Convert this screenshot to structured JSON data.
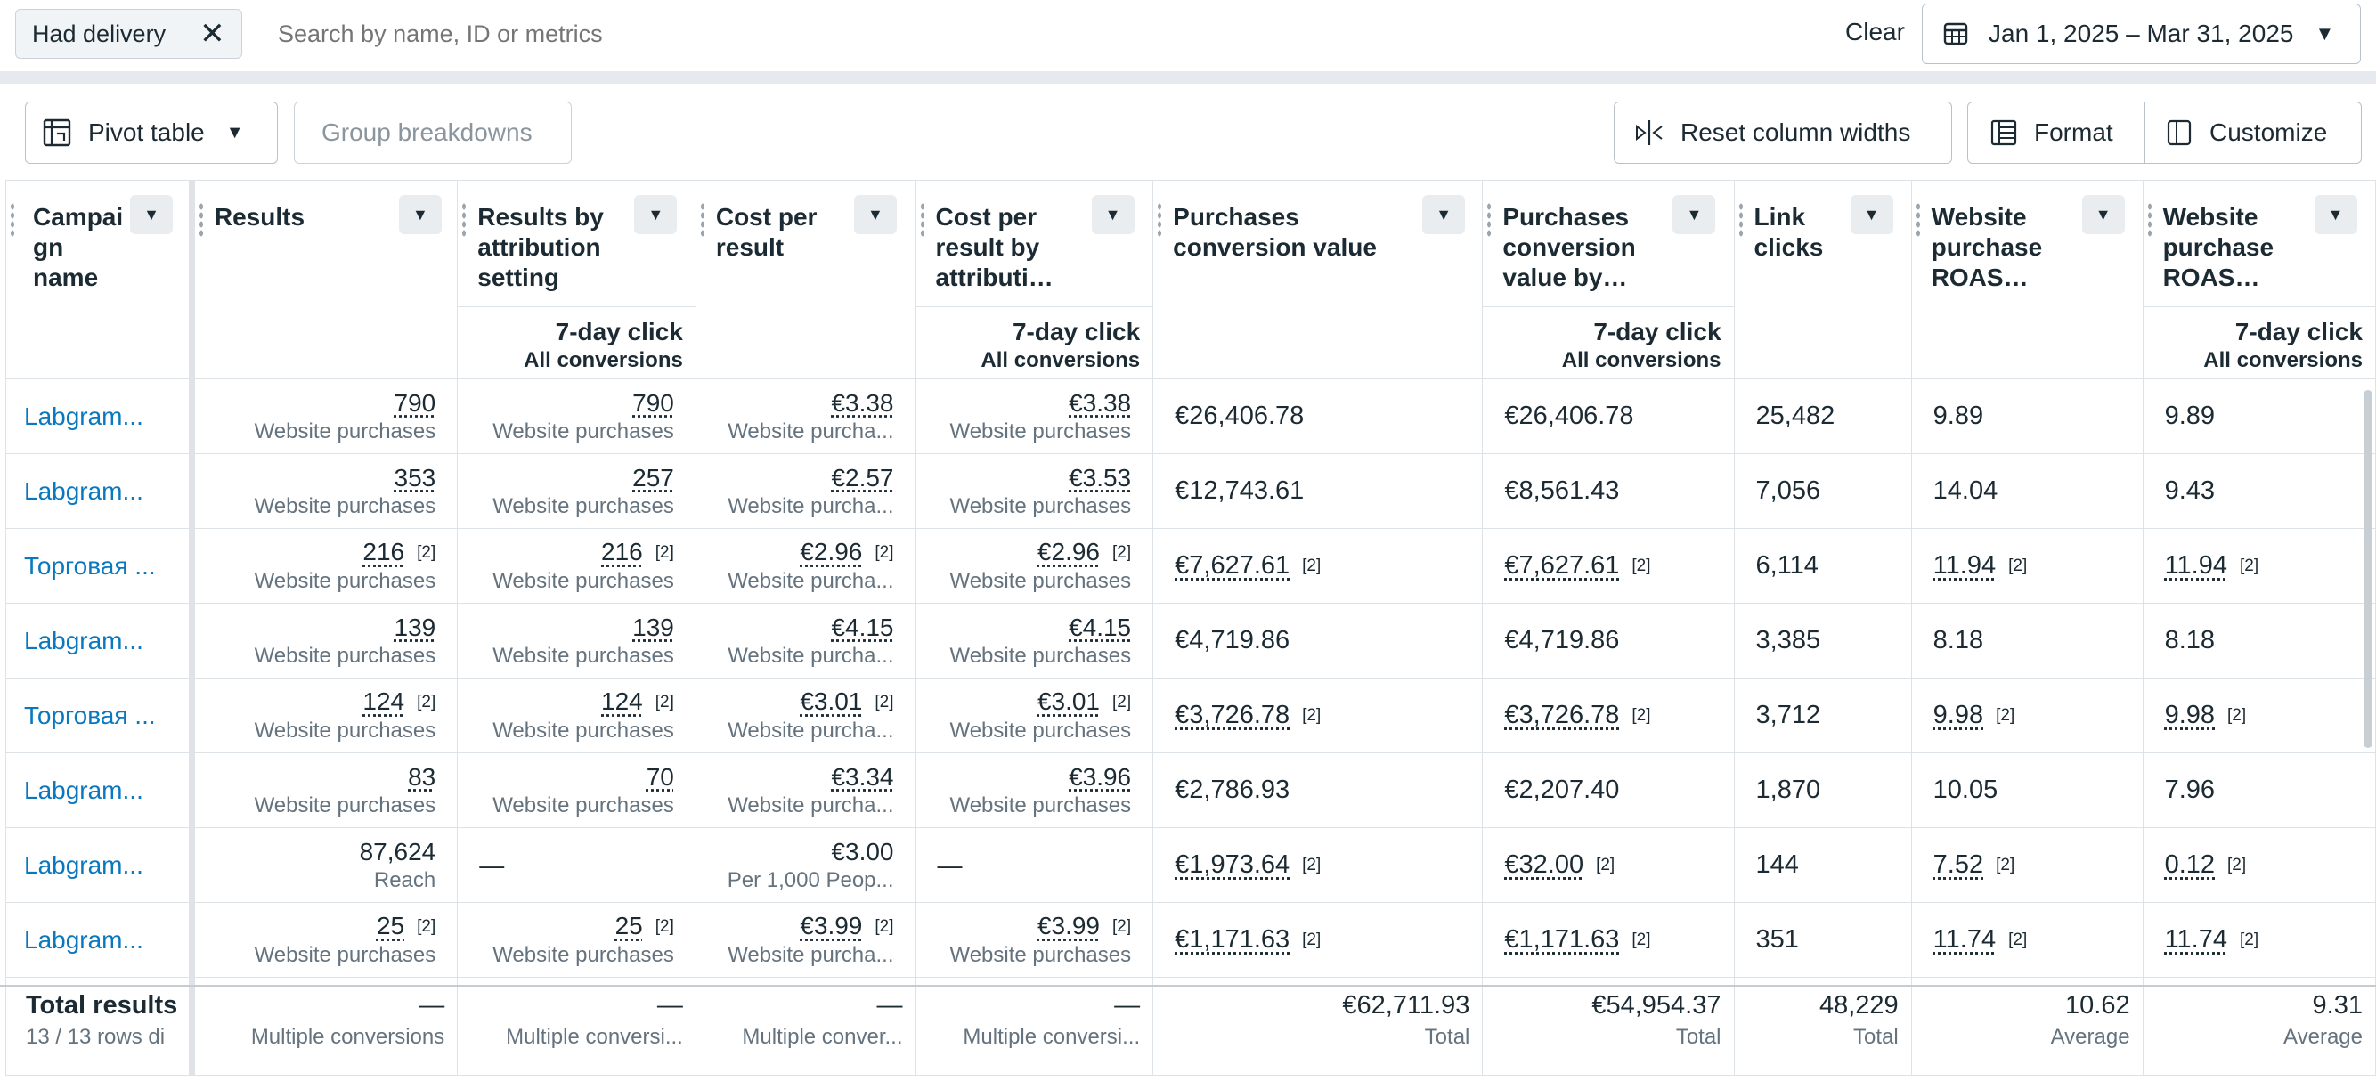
{
  "filter": {
    "chip_label": "Had delivery",
    "search_placeholder": "Search by name, ID or metrics",
    "clear_label": "Clear",
    "date_range": "Jan 1, 2025 – Mar 31, 2025"
  },
  "toolbar": {
    "pivot_label": "Pivot table",
    "group_label": "Group breakdowns",
    "reset_label": "Reset column widths",
    "format_label": "Format",
    "customize_label": "Customize"
  },
  "columns": [
    {
      "name": "Campaign name",
      "label": "Campai gn name",
      "sub1": "",
      "sub2": ""
    },
    {
      "name": "Results",
      "label": "Results",
      "sub1": "",
      "sub2": ""
    },
    {
      "name": "Results by attribution setting",
      "label": "Results by attribution setting",
      "sub1": "7-day click",
      "sub2": "All conversions"
    },
    {
      "name": "Cost per result",
      "label": "Cost per result",
      "sub1": "",
      "sub2": ""
    },
    {
      "name": "Cost per result by attribution",
      "label": "Cost per result by attributi…",
      "sub1": "7-day click",
      "sub2": "All conversions"
    },
    {
      "name": "Purchases conversion value",
      "label": "Purchases conversion value",
      "sub1": "",
      "sub2": ""
    },
    {
      "name": "Purchases conversion value by",
      "label": "Purchases conversion value by…",
      "sub1": "7-day click",
      "sub2": "All conversions"
    },
    {
      "name": "Link clicks",
      "label": "Link clicks",
      "sub1": "",
      "sub2": ""
    },
    {
      "name": "Website purchase ROAS",
      "label": "Website purchase ROAS…",
      "sub1": "",
      "sub2": ""
    },
    {
      "name": "Website purchase ROAS by",
      "label": "Website purchase ROAS…",
      "sub1": "7-day click",
      "sub2": "All conversions"
    }
  ],
  "rows": [
    {
      "name": "Labgram...",
      "results": "790",
      "results_sub": "Website purchases",
      "results_ref": "",
      "attr": "790",
      "attr_sub": "Website purchases",
      "attr_ref": "",
      "cpr": "€3.38",
      "cpr_sub": "Website purcha...",
      "cpr_ref": "",
      "cpra": "€3.38",
      "cpra_sub": "Website purchases",
      "cpra_ref": "",
      "pcv": "€26,406.78",
      "pcv_ref": "",
      "pcva": "€26,406.78",
      "pcva_ref": "",
      "clicks": "25,482",
      "roas": "9.89",
      "roas_ref": "",
      "roasa": "9.89",
      "roasa_ref": ""
    },
    {
      "name": "Labgram...",
      "results": "353",
      "results_sub": "Website purchases",
      "results_ref": "",
      "attr": "257",
      "attr_sub": "Website purchases",
      "attr_ref": "",
      "cpr": "€2.57",
      "cpr_sub": "Website purcha...",
      "cpr_ref": "",
      "cpra": "€3.53",
      "cpra_sub": "Website purchases",
      "cpra_ref": "",
      "pcv": "€12,743.61",
      "pcv_ref": "",
      "pcva": "€8,561.43",
      "pcva_ref": "",
      "clicks": "7,056",
      "roas": "14.04",
      "roas_ref": "",
      "roasa": "9.43",
      "roasa_ref": ""
    },
    {
      "name": "Торговая ...",
      "results": "216",
      "results_sub": "Website purchases",
      "results_ref": "[2]",
      "attr": "216",
      "attr_sub": "Website purchases",
      "attr_ref": "[2]",
      "cpr": "€2.96",
      "cpr_sub": "Website purcha...",
      "cpr_ref": "[2]",
      "cpra": "€2.96",
      "cpra_sub": "Website purchases",
      "cpra_ref": "[2]",
      "pcv": "€7,627.61",
      "pcv_ref": "[2]",
      "pcva": "€7,627.61",
      "pcva_ref": "[2]",
      "clicks": "6,114",
      "roas": "11.94",
      "roas_ref": "[2]",
      "roasa": "11.94",
      "roasa_ref": "[2]"
    },
    {
      "name": "Labgram...",
      "results": "139",
      "results_sub": "Website purchases",
      "results_ref": "",
      "attr": "139",
      "attr_sub": "Website purchases",
      "attr_ref": "",
      "cpr": "€4.15",
      "cpr_sub": "Website purcha...",
      "cpr_ref": "",
      "cpra": "€4.15",
      "cpra_sub": "Website purchases",
      "cpra_ref": "",
      "pcv": "€4,719.86",
      "pcv_ref": "",
      "pcva": "€4,719.86",
      "pcva_ref": "",
      "clicks": "3,385",
      "roas": "8.18",
      "roas_ref": "",
      "roasa": "8.18",
      "roasa_ref": ""
    },
    {
      "name": "Торговая ...",
      "results": "124",
      "results_sub": "Website purchases",
      "results_ref": "[2]",
      "attr": "124",
      "attr_sub": "Website purchases",
      "attr_ref": "[2]",
      "cpr": "€3.01",
      "cpr_sub": "Website purcha...",
      "cpr_ref": "[2]",
      "cpra": "€3.01",
      "cpra_sub": "Website purchases",
      "cpra_ref": "[2]",
      "pcv": "€3,726.78",
      "pcv_ref": "[2]",
      "pcva": "€3,726.78",
      "pcva_ref": "[2]",
      "clicks": "3,712",
      "roas": "9.98",
      "roas_ref": "[2]",
      "roasa": "9.98",
      "roasa_ref": "[2]"
    },
    {
      "name": "Labgram...",
      "results": "83",
      "results_sub": "Website purchases",
      "results_ref": "",
      "attr": "70",
      "attr_sub": "Website purchases",
      "attr_ref": "",
      "cpr": "€3.34",
      "cpr_sub": "Website purcha...",
      "cpr_ref": "",
      "cpra": "€3.96",
      "cpra_sub": "Website purchases",
      "cpra_ref": "",
      "pcv": "€2,786.93",
      "pcv_ref": "",
      "pcva": "€2,207.40",
      "pcva_ref": "",
      "clicks": "1,870",
      "roas": "10.05",
      "roas_ref": "",
      "roasa": "7.96",
      "roasa_ref": ""
    },
    {
      "name": "Labgram...",
      "results": "87,624",
      "results_sub": "Reach",
      "results_ref": "",
      "attr": "—",
      "attr_sub": "",
      "attr_ref": "",
      "cpr": "€3.00",
      "cpr_sub": "Per 1,000 Peop...",
      "cpr_ref": "",
      "cpra": "—",
      "cpra_sub": "",
      "cpra_ref": "",
      "pcv": "€1,973.64",
      "pcv_ref": "[2]",
      "pcva": "€32.00",
      "pcva_ref": "[2]",
      "clicks": "144",
      "roas": "7.52",
      "roas_ref": "[2]",
      "roasa": "0.12",
      "roasa_ref": "[2]"
    },
    {
      "name": "Labgram...",
      "results": "25",
      "results_sub": "Website purchases",
      "results_ref": "[2]",
      "attr": "25",
      "attr_sub": "Website purchases",
      "attr_ref": "[2]",
      "cpr": "€3.99",
      "cpr_sub": "Website purcha...",
      "cpr_ref": "[2]",
      "cpra": "€3.99",
      "cpra_sub": "Website purchases",
      "cpra_ref": "[2]",
      "pcv": "€1,171.63",
      "pcv_ref": "[2]",
      "pcva": "€1,171.63",
      "pcva_ref": "[2]",
      "clicks": "351",
      "roas": "11.74",
      "roas_ref": "[2]",
      "roasa": "11.74",
      "roasa_ref": "[2]"
    }
  ],
  "totals": {
    "label": "Total results",
    "rows_info": "13 / 13 rows di",
    "results": "—",
    "results_sub": "Multiple conversions",
    "attr": "—",
    "attr_sub": "Multiple conversi...",
    "cpr": "—",
    "cpr_sub": "Multiple conver...",
    "cpra": "—",
    "cpra_sub": "Multiple conversi...",
    "pcv": "€62,711.93",
    "pcv_sub": "Total",
    "pcva": "€54,954.37",
    "pcva_sub": "Total",
    "clicks": "48,229",
    "clicks_sub": "Total",
    "roas": "10.62",
    "roas_sub": "Average",
    "roasa": "9.31",
    "roasa_sub": "Average"
  }
}
